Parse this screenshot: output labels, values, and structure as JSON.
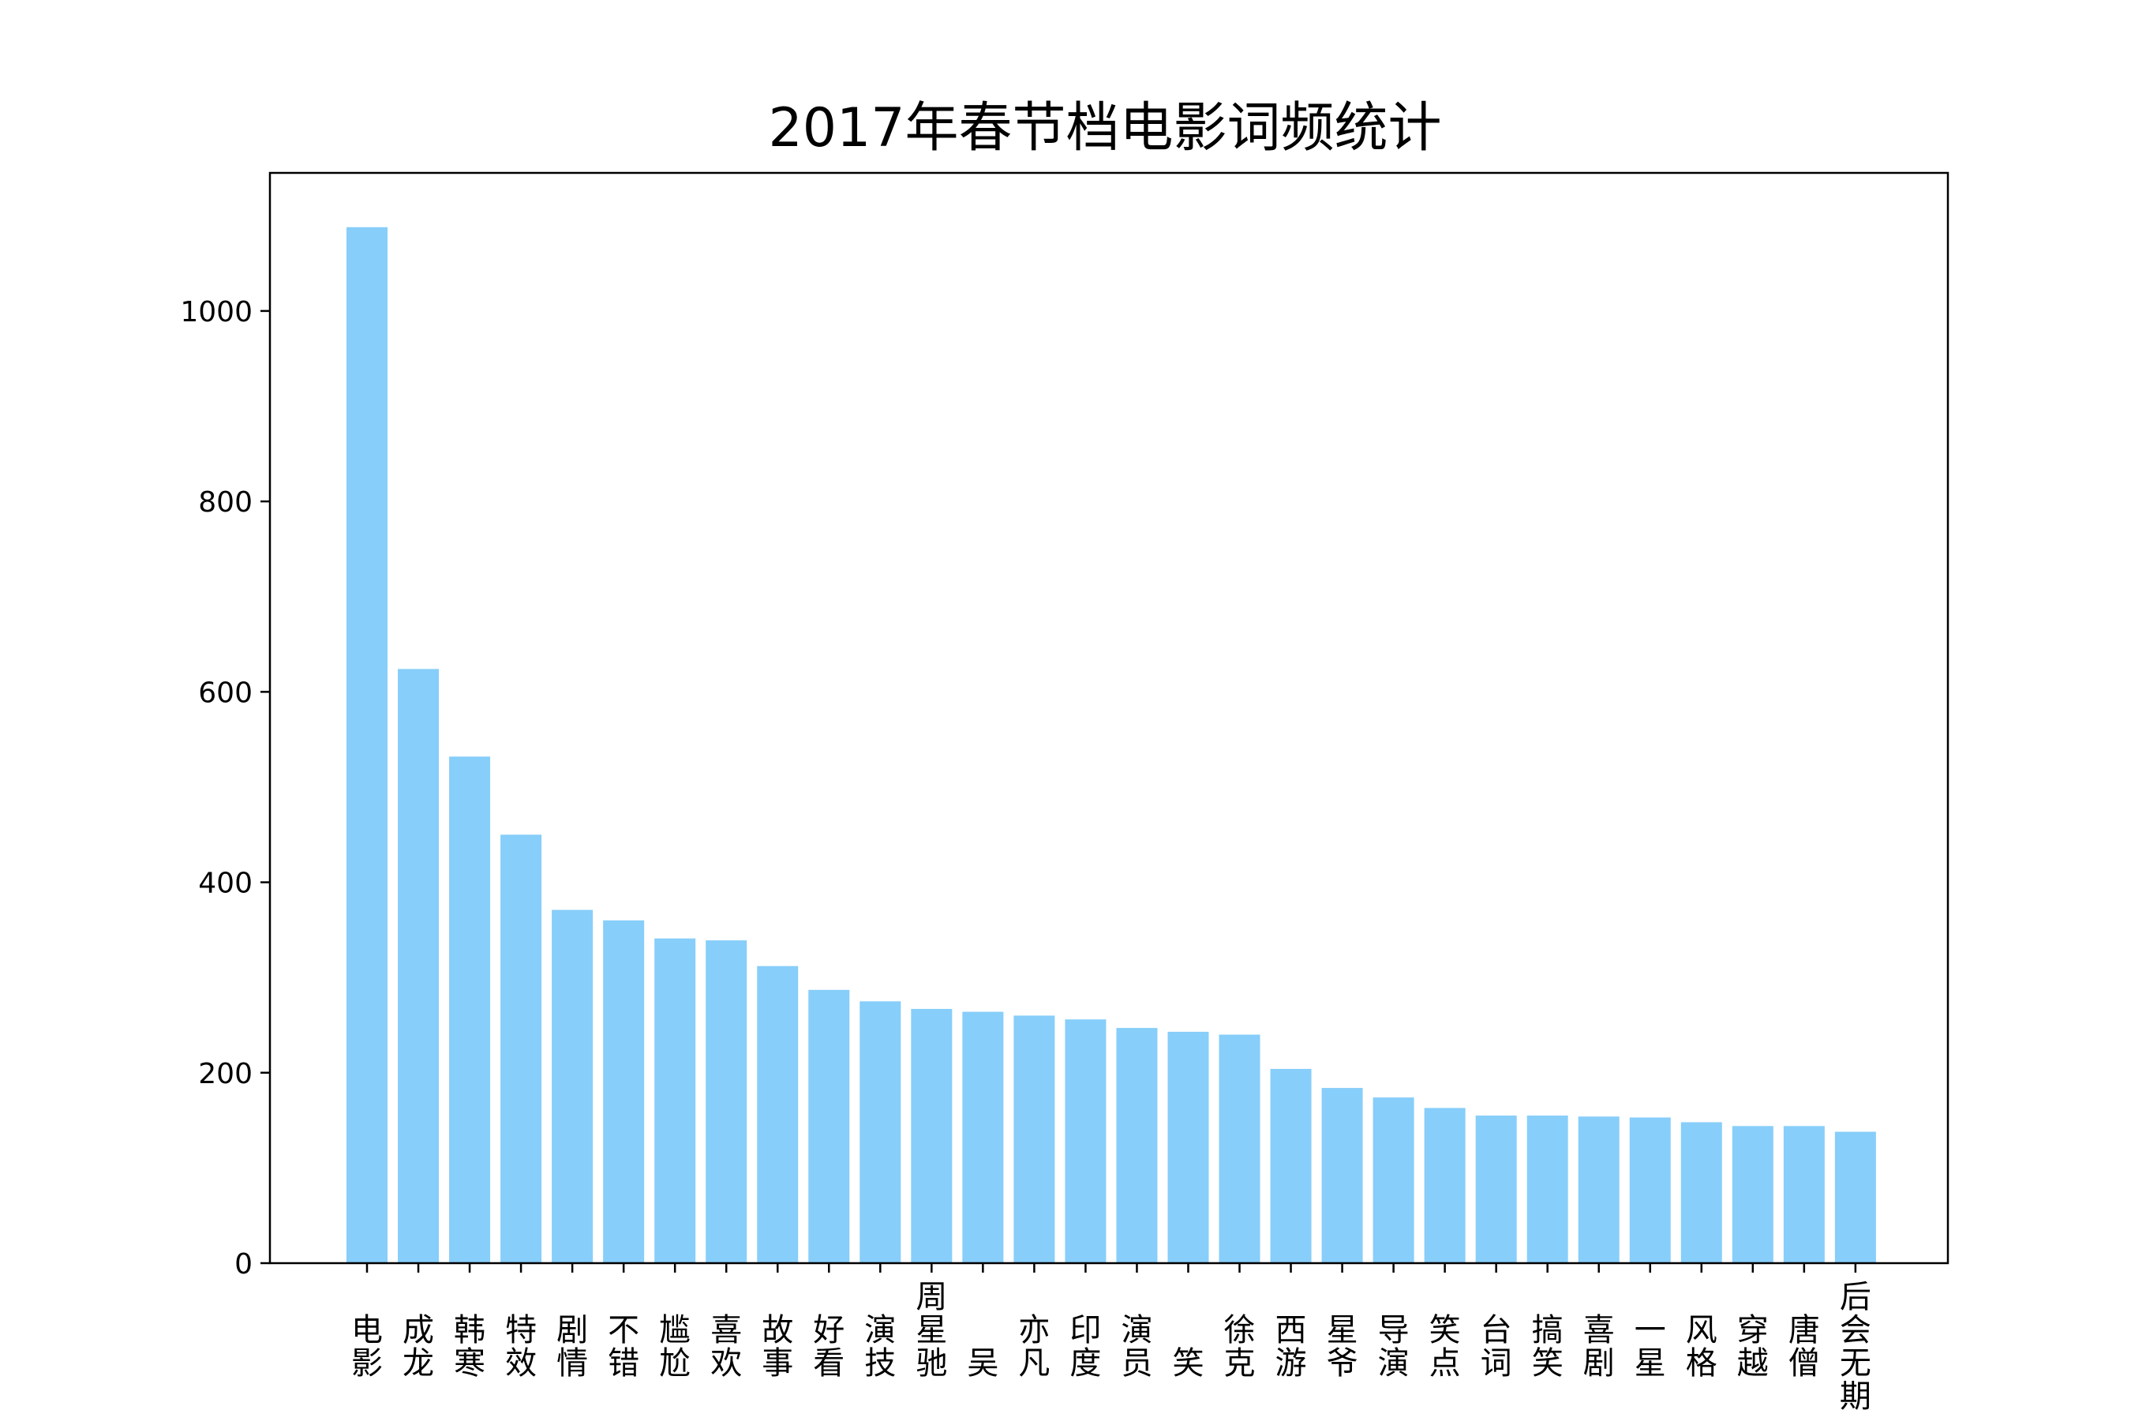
{
  "chart_data": {
    "type": "bar",
    "title": "2017年春节档电影词频统计",
    "xlabel": "",
    "ylabel": "",
    "categories": [
      "电影",
      "成龙",
      "韩寒",
      "特效",
      "剧情",
      "不错",
      "尴尬",
      "喜欢",
      "故事",
      "好看",
      "演技",
      "周星驰",
      "吴",
      "亦凡",
      "印度",
      "演员",
      "笑",
      "徐克",
      "西游",
      "星爷",
      "导演",
      "笑点",
      "台词",
      "搞笑",
      "喜剧",
      "一星",
      "风格",
      "穿越",
      "唐僧",
      "后会无期"
    ],
    "values": [
      1088,
      624,
      532,
      450,
      371,
      360,
      341,
      339,
      312,
      287,
      275,
      267,
      264,
      260,
      256,
      247,
      243,
      240,
      204,
      184,
      174,
      163,
      155,
      155,
      154,
      153,
      148,
      144,
      144,
      138
    ],
    "yticks": [
      0,
      200,
      400,
      600,
      800,
      1000
    ],
    "ylim": [
      0,
      1145
    ],
    "grid": false,
    "bar_color": "#87CEFA",
    "axis_color": "#000000"
  }
}
